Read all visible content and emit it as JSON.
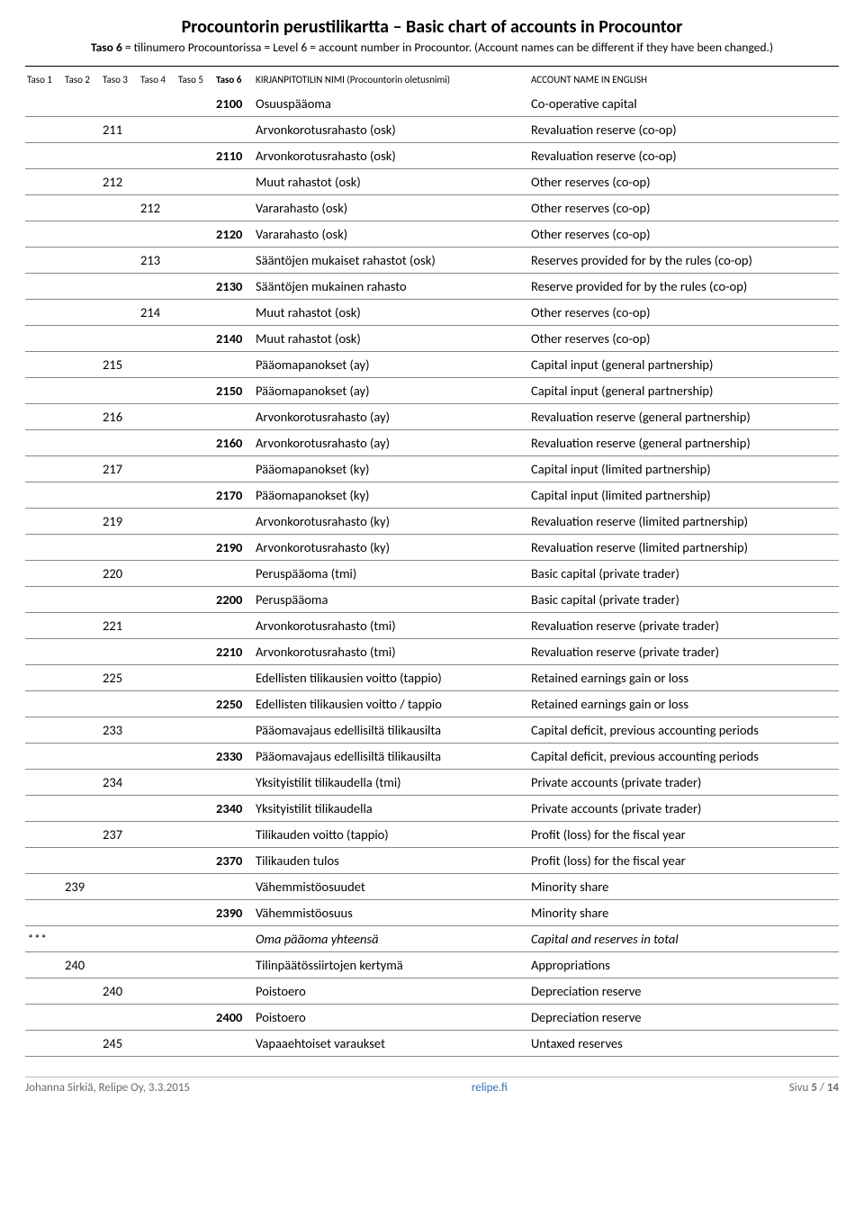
{
  "header": {
    "title": "Procountorin perustilikartta  –  Basic chart of accounts in Procountor",
    "subtitle_prefix_bold": "Taso 6",
    "subtitle_rest": " = tilinumero Procountorissa = Level 6 = account number in Procountor. (Account names can be different if they have been changed.)"
  },
  "table": {
    "columns": {
      "t1": "Taso 1",
      "t2": "Taso 2",
      "t3": "Taso 3",
      "t4": "Taso 4",
      "t5": "Taso 5",
      "t6": "Taso 6",
      "fi": "KIRJANPITOTILIN NIMI (Procountorin oletusnimi)",
      "en": "ACCOUNT NAME IN ENGLISH"
    },
    "rows": [
      {
        "t1": "",
        "t2": "",
        "t3": "",
        "t4": "",
        "t5": "",
        "t6": "2100",
        "fi": "Osuuspääoma",
        "en": "Co-operative capital",
        "italic": false
      },
      {
        "t1": "",
        "t2": "",
        "t3": "211",
        "t4": "",
        "t5": "",
        "t6": "",
        "fi": "Arvonkorotusrahasto (osk)",
        "en": "Revaluation reserve (co-op)",
        "italic": false
      },
      {
        "t1": "",
        "t2": "",
        "t3": "",
        "t4": "",
        "t5": "",
        "t6": "2110",
        "fi": "Arvonkorotusrahasto (osk)",
        "en": "Revaluation reserve (co-op)",
        "italic": false
      },
      {
        "t1": "",
        "t2": "",
        "t3": "212",
        "t4": "",
        "t5": "",
        "t6": "",
        "fi": "Muut rahastot (osk)",
        "en": "Other reserves (co-op)",
        "italic": false
      },
      {
        "t1": "",
        "t2": "",
        "t3": "",
        "t4": "212",
        "t5": "",
        "t6": "",
        "fi": "Vararahasto (osk)",
        "en": "Other reserves (co-op)",
        "italic": false
      },
      {
        "t1": "",
        "t2": "",
        "t3": "",
        "t4": "",
        "t5": "",
        "t6": "2120",
        "fi": "Vararahasto (osk)",
        "en": "Other reserves (co-op)",
        "italic": false
      },
      {
        "t1": "",
        "t2": "",
        "t3": "",
        "t4": "213",
        "t5": "",
        "t6": "",
        "fi": "Sääntöjen mukaiset rahastot (osk)",
        "en": "Reserves provided for by the rules (co-op)",
        "italic": false
      },
      {
        "t1": "",
        "t2": "",
        "t3": "",
        "t4": "",
        "t5": "",
        "t6": "2130",
        "fi": "Sääntöjen mukainen rahasto",
        "en": "Reserve provided for by the rules (co-op)",
        "italic": false
      },
      {
        "t1": "",
        "t2": "",
        "t3": "",
        "t4": "214",
        "t5": "",
        "t6": "",
        "fi": "Muut rahastot (osk)",
        "en": "Other reserves (co-op)",
        "italic": false
      },
      {
        "t1": "",
        "t2": "",
        "t3": "",
        "t4": "",
        "t5": "",
        "t6": "2140",
        "fi": "Muut rahastot (osk)",
        "en": "Other reserves (co-op)",
        "italic": false
      },
      {
        "t1": "",
        "t2": "",
        "t3": "215",
        "t4": "",
        "t5": "",
        "t6": "",
        "fi": "Pääomapanokset (ay)",
        "en": "Capital input (general partnership)",
        "italic": false
      },
      {
        "t1": "",
        "t2": "",
        "t3": "",
        "t4": "",
        "t5": "",
        "t6": "2150",
        "fi": "Pääomapanokset (ay)",
        "en": "Capital input (general partnership)",
        "italic": false
      },
      {
        "t1": "",
        "t2": "",
        "t3": "216",
        "t4": "",
        "t5": "",
        "t6": "",
        "fi": "Arvonkorotusrahasto (ay)",
        "en": "Revaluation reserve (general partnership)",
        "italic": false
      },
      {
        "t1": "",
        "t2": "",
        "t3": "",
        "t4": "",
        "t5": "",
        "t6": "2160",
        "fi": "Arvonkorotusrahasto (ay)",
        "en": "Revaluation reserve (general partnership)",
        "italic": false
      },
      {
        "t1": "",
        "t2": "",
        "t3": "217",
        "t4": "",
        "t5": "",
        "t6": "",
        "fi": "Pääomapanokset (ky)",
        "en": "Capital input (limited partnership)",
        "italic": false
      },
      {
        "t1": "",
        "t2": "",
        "t3": "",
        "t4": "",
        "t5": "",
        "t6": "2170",
        "fi": "Pääomapanokset (ky)",
        "en": "Capital input (limited partnership)",
        "italic": false
      },
      {
        "t1": "",
        "t2": "",
        "t3": "219",
        "t4": "",
        "t5": "",
        "t6": "",
        "fi": "Arvonkorotusrahasto (ky)",
        "en": "Revaluation reserve (limited partnership)",
        "italic": false
      },
      {
        "t1": "",
        "t2": "",
        "t3": "",
        "t4": "",
        "t5": "",
        "t6": "2190",
        "fi": "Arvonkorotusrahasto (ky)",
        "en": "Revaluation reserve (limited partnership)",
        "italic": false
      },
      {
        "t1": "",
        "t2": "",
        "t3": "220",
        "t4": "",
        "t5": "",
        "t6": "",
        "fi": "Peruspääoma (tmi)",
        "en": "Basic capital (private trader)",
        "italic": false
      },
      {
        "t1": "",
        "t2": "",
        "t3": "",
        "t4": "",
        "t5": "",
        "t6": "2200",
        "fi": "Peruspääoma",
        "en": "Basic capital (private trader)",
        "italic": false
      },
      {
        "t1": "",
        "t2": "",
        "t3": "221",
        "t4": "",
        "t5": "",
        "t6": "",
        "fi": "Arvonkorotusrahasto (tmi)",
        "en": "Revaluation reserve (private trader)",
        "italic": false
      },
      {
        "t1": "",
        "t2": "",
        "t3": "",
        "t4": "",
        "t5": "",
        "t6": "2210",
        "fi": "Arvonkorotusrahasto (tmi)",
        "en": "Revaluation reserve (private trader)",
        "italic": false
      },
      {
        "t1": "",
        "t2": "",
        "t3": "225",
        "t4": "",
        "t5": "",
        "t6": "",
        "fi": "Edellisten tilikausien voitto (tappio)",
        "en": "Retained earnings gain or loss",
        "italic": false
      },
      {
        "t1": "",
        "t2": "",
        "t3": "",
        "t4": "",
        "t5": "",
        "t6": "2250",
        "fi": "Edellisten tilikausien voitto / tappio",
        "en": "Retained earnings gain or loss",
        "italic": false
      },
      {
        "t1": "",
        "t2": "",
        "t3": "233",
        "t4": "",
        "t5": "",
        "t6": "",
        "fi": "Pääomavajaus edellisiltä tilikausilta",
        "en": "Capital deficit, previous accounting periods",
        "italic": false
      },
      {
        "t1": "",
        "t2": "",
        "t3": "",
        "t4": "",
        "t5": "",
        "t6": "2330",
        "fi": "Pääomavajaus edellisiltä tilikausilta",
        "en": "Capital deficit, previous accounting periods",
        "italic": false
      },
      {
        "t1": "",
        "t2": "",
        "t3": "234",
        "t4": "",
        "t5": "",
        "t6": "",
        "fi": "Yksityistilit tilikaudella (tmi)",
        "en": "Private accounts (private trader)",
        "italic": false
      },
      {
        "t1": "",
        "t2": "",
        "t3": "",
        "t4": "",
        "t5": "",
        "t6": "2340",
        "fi": "Yksityistilit tilikaudella",
        "en": "Private accounts (private trader)",
        "italic": false
      },
      {
        "t1": "",
        "t2": "",
        "t3": "237",
        "t4": "",
        "t5": "",
        "t6": "",
        "fi": "Tilikauden voitto (tappio)",
        "en": "Profit (loss) for the fiscal year",
        "italic": false
      },
      {
        "t1": "",
        "t2": "",
        "t3": "",
        "t4": "",
        "t5": "",
        "t6": "2370",
        "fi": "Tilikauden tulos",
        "en": "Profit (loss) for the fiscal year",
        "italic": false
      },
      {
        "t1": "",
        "t2": "239",
        "t3": "",
        "t4": "",
        "t5": "",
        "t6": "",
        "fi": "Vähemmistöosuudet",
        "en": "Minority share",
        "italic": false
      },
      {
        "t1": "",
        "t2": "",
        "t3": "",
        "t4": "",
        "t5": "",
        "t6": "2390",
        "fi": "Vähemmistöosuus",
        "en": "Minority share",
        "italic": false
      },
      {
        "t1": "***",
        "t2": "",
        "t3": "",
        "t4": "",
        "t5": "",
        "t6": "",
        "fi": "Oma pääoma yhteensä",
        "en": "Capital and reserves in total",
        "italic": true
      },
      {
        "t1": "",
        "t2": "240",
        "t3": "",
        "t4": "",
        "t5": "",
        "t6": "",
        "fi": "Tilinpäätössiirtojen kertymä",
        "en": "Appropriations",
        "italic": false
      },
      {
        "t1": "",
        "t2": "",
        "t3": "240",
        "t4": "",
        "t5": "",
        "t6": "",
        "fi": "Poistoero",
        "en": "Depreciation reserve",
        "italic": false
      },
      {
        "t1": "",
        "t2": "",
        "t3": "",
        "t4": "",
        "t5": "",
        "t6": "2400",
        "fi": "Poistoero",
        "en": "Depreciation reserve",
        "italic": false
      },
      {
        "t1": "",
        "t2": "",
        "t3": "245",
        "t4": "",
        "t5": "",
        "t6": "",
        "fi": "Vapaaehtoiset varaukset",
        "en": "Untaxed reserves",
        "italic": false
      }
    ]
  },
  "footer": {
    "left": "Johanna Sirkiä, Relipe Oy, 3.3.2015",
    "link": "relipe.fi",
    "right_prefix": "Sivu ",
    "page_current": "5",
    "page_sep": " / ",
    "page_total": "14"
  }
}
